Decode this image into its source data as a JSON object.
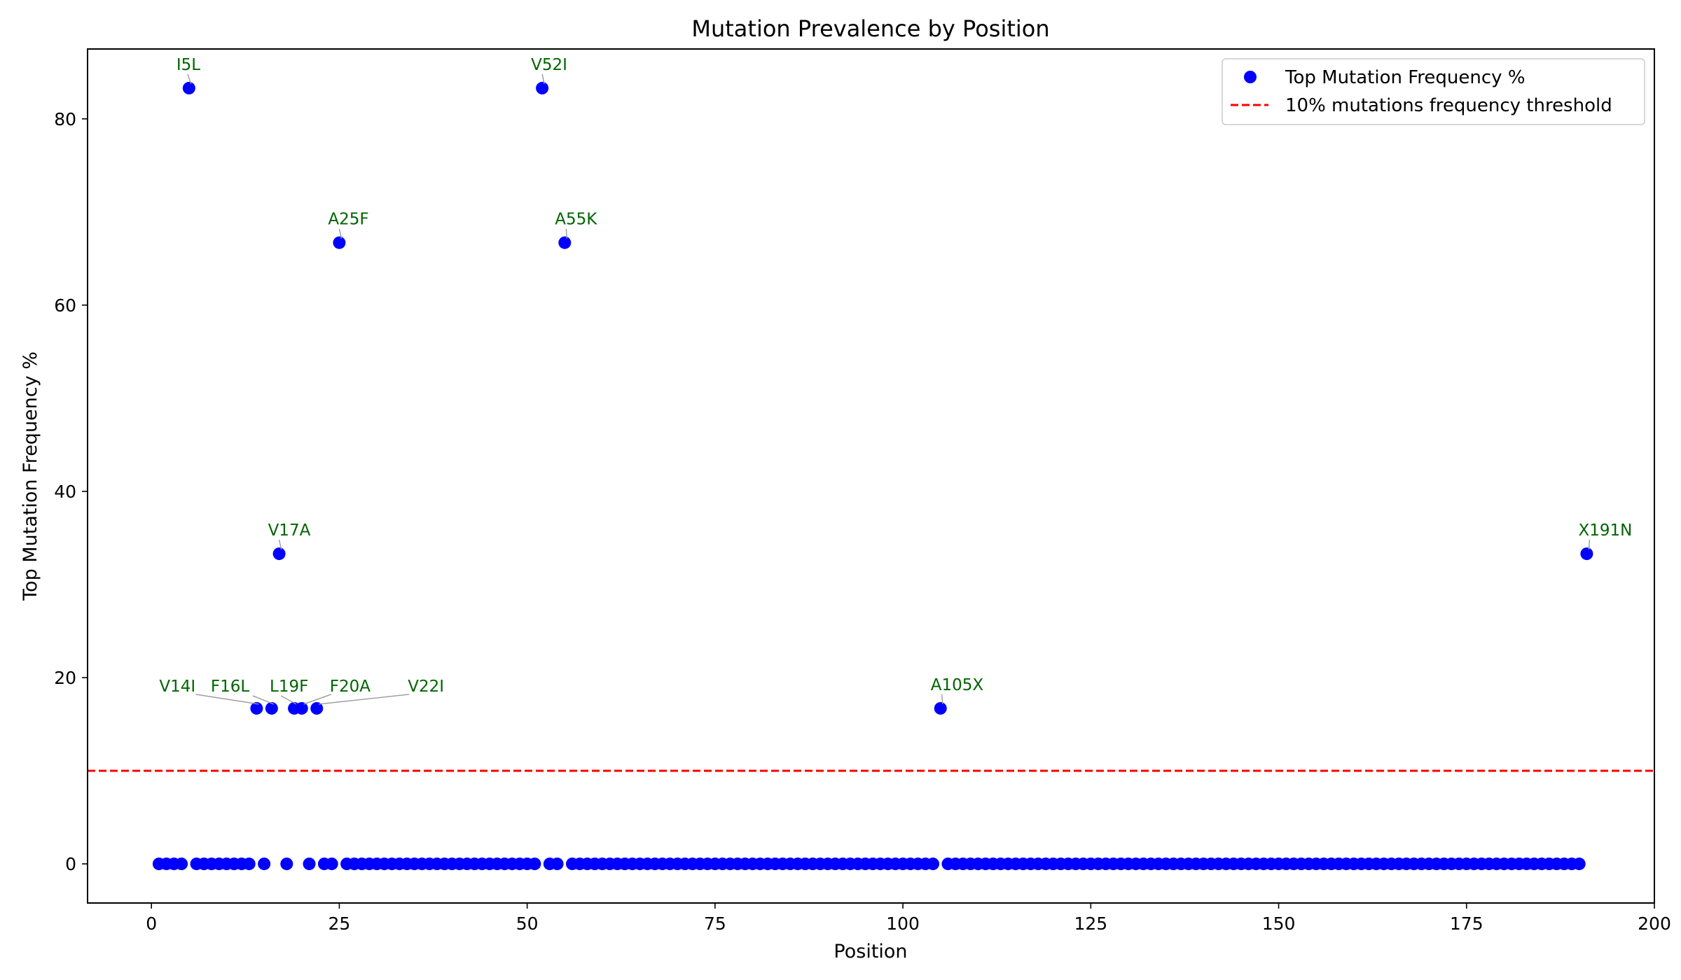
{
  "chart_data": {
    "type": "scatter",
    "title": "Mutation Prevalence by Position",
    "xlabel": "Position",
    "ylabel": "Top Mutation Frequency %",
    "xlim": [
      -8.5,
      200
    ],
    "ylim": [
      -4.2,
      87.5
    ],
    "xticks": [
      0,
      25,
      50,
      75,
      100,
      125,
      150,
      175,
      200
    ],
    "yticks": [
      0,
      20,
      40,
      60,
      80
    ],
    "grid": false,
    "legend": {
      "location": "upper right",
      "entries": [
        {
          "label": "Top Mutation Frequency %",
          "kind": "marker",
          "color": "#0000ff"
        },
        {
          "label": "10% mutations frequency threshold",
          "kind": "dashed-line",
          "color": "#ff0000"
        }
      ]
    },
    "threshold": {
      "y": 10,
      "color": "#ff0000",
      "style": "dashed"
    },
    "series": [
      {
        "name": "Top Mutation Frequency %",
        "color": "#0000ff",
        "points": [
          {
            "x": 1,
            "y": 0
          },
          {
            "x": 2,
            "y": 0
          },
          {
            "x": 3,
            "y": 0
          },
          {
            "x": 4,
            "y": 0
          },
          {
            "x": 5,
            "y": 83.3
          },
          {
            "x": 6,
            "y": 0
          },
          {
            "x": 7,
            "y": 0
          },
          {
            "x": 8,
            "y": 0
          },
          {
            "x": 9,
            "y": 0
          },
          {
            "x": 10,
            "y": 0
          },
          {
            "x": 11,
            "y": 0
          },
          {
            "x": 12,
            "y": 0
          },
          {
            "x": 13,
            "y": 0
          },
          {
            "x": 14,
            "y": 16.7
          },
          {
            "x": 15,
            "y": 0
          },
          {
            "x": 16,
            "y": 16.7
          },
          {
            "x": 17,
            "y": 33.3
          },
          {
            "x": 18,
            "y": 0
          },
          {
            "x": 19,
            "y": 16.7
          },
          {
            "x": 20,
            "y": 16.7
          },
          {
            "x": 21,
            "y": 0
          },
          {
            "x": 22,
            "y": 16.7
          },
          {
            "x": 23,
            "y": 0
          },
          {
            "x": 24,
            "y": 0
          },
          {
            "x": 25,
            "y": 66.7
          },
          {
            "x": 26,
            "y": 0
          },
          {
            "x": 27,
            "y": 0
          },
          {
            "x": 28,
            "y": 0
          },
          {
            "x": 29,
            "y": 0
          },
          {
            "x": 30,
            "y": 0
          },
          {
            "x": 31,
            "y": 0
          },
          {
            "x": 32,
            "y": 0
          },
          {
            "x": 33,
            "y": 0
          },
          {
            "x": 34,
            "y": 0
          },
          {
            "x": 35,
            "y": 0
          },
          {
            "x": 36,
            "y": 0
          },
          {
            "x": 37,
            "y": 0
          },
          {
            "x": 38,
            "y": 0
          },
          {
            "x": 39,
            "y": 0
          },
          {
            "x": 40,
            "y": 0
          },
          {
            "x": 41,
            "y": 0
          },
          {
            "x": 42,
            "y": 0
          },
          {
            "x": 43,
            "y": 0
          },
          {
            "x": 44,
            "y": 0
          },
          {
            "x": 45,
            "y": 0
          },
          {
            "x": 46,
            "y": 0
          },
          {
            "x": 47,
            "y": 0
          },
          {
            "x": 48,
            "y": 0
          },
          {
            "x": 49,
            "y": 0
          },
          {
            "x": 50,
            "y": 0
          },
          {
            "x": 51,
            "y": 0
          },
          {
            "x": 52,
            "y": 83.3
          },
          {
            "x": 53,
            "y": 0
          },
          {
            "x": 54,
            "y": 0
          },
          {
            "x": 55,
            "y": 66.7
          },
          {
            "x": 56,
            "y": 0
          },
          {
            "x": 57,
            "y": 0
          },
          {
            "x": 58,
            "y": 0
          },
          {
            "x": 59,
            "y": 0
          },
          {
            "x": 60,
            "y": 0
          },
          {
            "x": 61,
            "y": 0
          },
          {
            "x": 62,
            "y": 0
          },
          {
            "x": 63,
            "y": 0
          },
          {
            "x": 64,
            "y": 0
          },
          {
            "x": 65,
            "y": 0
          },
          {
            "x": 66,
            "y": 0
          },
          {
            "x": 67,
            "y": 0
          },
          {
            "x": 68,
            "y": 0
          },
          {
            "x": 69,
            "y": 0
          },
          {
            "x": 70,
            "y": 0
          },
          {
            "x": 71,
            "y": 0
          },
          {
            "x": 72,
            "y": 0
          },
          {
            "x": 73,
            "y": 0
          },
          {
            "x": 74,
            "y": 0
          },
          {
            "x": 75,
            "y": 0
          },
          {
            "x": 76,
            "y": 0
          },
          {
            "x": 77,
            "y": 0
          },
          {
            "x": 78,
            "y": 0
          },
          {
            "x": 79,
            "y": 0
          },
          {
            "x": 80,
            "y": 0
          },
          {
            "x": 81,
            "y": 0
          },
          {
            "x": 82,
            "y": 0
          },
          {
            "x": 83,
            "y": 0
          },
          {
            "x": 84,
            "y": 0
          },
          {
            "x": 85,
            "y": 0
          },
          {
            "x": 86,
            "y": 0
          },
          {
            "x": 87,
            "y": 0
          },
          {
            "x": 88,
            "y": 0
          },
          {
            "x": 89,
            "y": 0
          },
          {
            "x": 90,
            "y": 0
          },
          {
            "x": 91,
            "y": 0
          },
          {
            "x": 92,
            "y": 0
          },
          {
            "x": 93,
            "y": 0
          },
          {
            "x": 94,
            "y": 0
          },
          {
            "x": 95,
            "y": 0
          },
          {
            "x": 96,
            "y": 0
          },
          {
            "x": 97,
            "y": 0
          },
          {
            "x": 98,
            "y": 0
          },
          {
            "x": 99,
            "y": 0
          },
          {
            "x": 100,
            "y": 0
          },
          {
            "x": 101,
            "y": 0
          },
          {
            "x": 102,
            "y": 0
          },
          {
            "x": 103,
            "y": 0
          },
          {
            "x": 104,
            "y": 0
          },
          {
            "x": 105,
            "y": 16.7
          },
          {
            "x": 106,
            "y": 0
          },
          {
            "x": 107,
            "y": 0
          },
          {
            "x": 108,
            "y": 0
          },
          {
            "x": 109,
            "y": 0
          },
          {
            "x": 110,
            "y": 0
          },
          {
            "x": 111,
            "y": 0
          },
          {
            "x": 112,
            "y": 0
          },
          {
            "x": 113,
            "y": 0
          },
          {
            "x": 114,
            "y": 0
          },
          {
            "x": 115,
            "y": 0
          },
          {
            "x": 116,
            "y": 0
          },
          {
            "x": 117,
            "y": 0
          },
          {
            "x": 118,
            "y": 0
          },
          {
            "x": 119,
            "y": 0
          },
          {
            "x": 120,
            "y": 0
          },
          {
            "x": 121,
            "y": 0
          },
          {
            "x": 122,
            "y": 0
          },
          {
            "x": 123,
            "y": 0
          },
          {
            "x": 124,
            "y": 0
          },
          {
            "x": 125,
            "y": 0
          },
          {
            "x": 126,
            "y": 0
          },
          {
            "x": 127,
            "y": 0
          },
          {
            "x": 128,
            "y": 0
          },
          {
            "x": 129,
            "y": 0
          },
          {
            "x": 130,
            "y": 0
          },
          {
            "x": 131,
            "y": 0
          },
          {
            "x": 132,
            "y": 0
          },
          {
            "x": 133,
            "y": 0
          },
          {
            "x": 134,
            "y": 0
          },
          {
            "x": 135,
            "y": 0
          },
          {
            "x": 136,
            "y": 0
          },
          {
            "x": 137,
            "y": 0
          },
          {
            "x": 138,
            "y": 0
          },
          {
            "x": 139,
            "y": 0
          },
          {
            "x": 140,
            "y": 0
          },
          {
            "x": 141,
            "y": 0
          },
          {
            "x": 142,
            "y": 0
          },
          {
            "x": 143,
            "y": 0
          },
          {
            "x": 144,
            "y": 0
          },
          {
            "x": 145,
            "y": 0
          },
          {
            "x": 146,
            "y": 0
          },
          {
            "x": 147,
            "y": 0
          },
          {
            "x": 148,
            "y": 0
          },
          {
            "x": 149,
            "y": 0
          },
          {
            "x": 150,
            "y": 0
          },
          {
            "x": 151,
            "y": 0
          },
          {
            "x": 152,
            "y": 0
          },
          {
            "x": 153,
            "y": 0
          },
          {
            "x": 154,
            "y": 0
          },
          {
            "x": 155,
            "y": 0
          },
          {
            "x": 156,
            "y": 0
          },
          {
            "x": 157,
            "y": 0
          },
          {
            "x": 158,
            "y": 0
          },
          {
            "x": 159,
            "y": 0
          },
          {
            "x": 160,
            "y": 0
          },
          {
            "x": 161,
            "y": 0
          },
          {
            "x": 162,
            "y": 0
          },
          {
            "x": 163,
            "y": 0
          },
          {
            "x": 164,
            "y": 0
          },
          {
            "x": 165,
            "y": 0
          },
          {
            "x": 166,
            "y": 0
          },
          {
            "x": 167,
            "y": 0
          },
          {
            "x": 168,
            "y": 0
          },
          {
            "x": 169,
            "y": 0
          },
          {
            "x": 170,
            "y": 0
          },
          {
            "x": 171,
            "y": 0
          },
          {
            "x": 172,
            "y": 0
          },
          {
            "x": 173,
            "y": 0
          },
          {
            "x": 174,
            "y": 0
          },
          {
            "x": 175,
            "y": 0
          },
          {
            "x": 176,
            "y": 0
          },
          {
            "x": 177,
            "y": 0
          },
          {
            "x": 178,
            "y": 0
          },
          {
            "x": 179,
            "y": 0
          },
          {
            "x": 180,
            "y": 0
          },
          {
            "x": 181,
            "y": 0
          },
          {
            "x": 182,
            "y": 0
          },
          {
            "x": 183,
            "y": 0
          },
          {
            "x": 184,
            "y": 0
          },
          {
            "x": 185,
            "y": 0
          },
          {
            "x": 186,
            "y": 0
          },
          {
            "x": 187,
            "y": 0
          },
          {
            "x": 188,
            "y": 0
          },
          {
            "x": 189,
            "y": 0
          },
          {
            "x": 190,
            "y": 0
          },
          {
            "x": 191,
            "y": 33.3
          }
        ]
      }
    ],
    "annotations": [
      {
        "text": "I5L",
        "x": 5,
        "y": 83.3,
        "placement": "above",
        "color": "#006400"
      },
      {
        "text": "V52I",
        "x": 52,
        "y": 83.3,
        "placement": "above",
        "color": "#006400"
      },
      {
        "text": "A25F",
        "x": 25,
        "y": 66.7,
        "placement": "above",
        "color": "#006400"
      },
      {
        "text": "A55K",
        "x": 55,
        "y": 66.7,
        "placement": "above",
        "color": "#006400"
      },
      {
        "text": "V17A",
        "x": 17,
        "y": 33.3,
        "placement": "above",
        "color": "#006400"
      },
      {
        "text": "X191N",
        "x": 191,
        "y": 33.3,
        "placement": "above",
        "color": "#006400"
      },
      {
        "text": "V14I",
        "x": 14,
        "y": 16.7,
        "placement": "upper-left",
        "color": "#006400"
      },
      {
        "text": "F16L",
        "x": 16,
        "y": 16.7,
        "placement": "upper-left",
        "color": "#006400"
      },
      {
        "text": "L19F",
        "x": 19,
        "y": 16.7,
        "placement": "above",
        "color": "#006400"
      },
      {
        "text": "F20A",
        "x": 20,
        "y": 16.7,
        "placement": "upper-right",
        "color": "#006400"
      },
      {
        "text": "V22I",
        "x": 22,
        "y": 16.7,
        "placement": "upper-right",
        "color": "#006400"
      },
      {
        "text": "A105X",
        "x": 105,
        "y": 16.7,
        "placement": "above",
        "color": "#006400"
      }
    ]
  }
}
